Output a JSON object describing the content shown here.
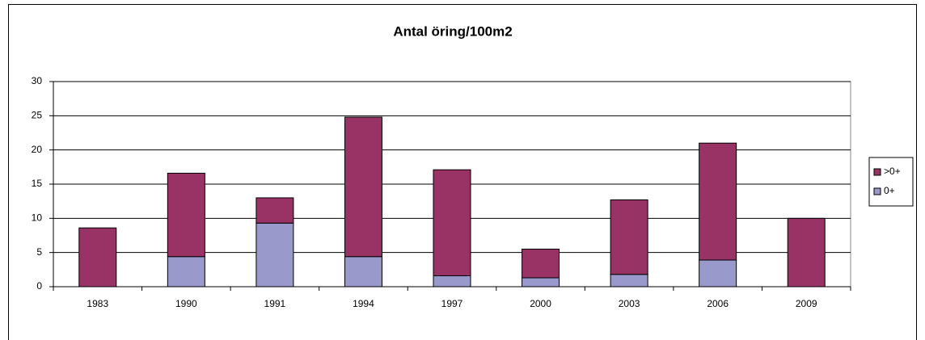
{
  "chart_data": {
    "type": "stacked_bar",
    "title": "Antal öring/100m2",
    "categories": [
      "1983",
      "1990",
      "1991",
      "1994",
      "1997",
      "2000",
      "2003",
      "2006",
      "2009"
    ],
    "series": [
      {
        "name": "0+",
        "color": "#9999cc",
        "values": [
          0,
          4.4,
          9.3,
          4.4,
          1.6,
          1.3,
          1.8,
          3.9,
          0
        ]
      },
      {
        "name": ">0+",
        "color": "#993366",
        "values": [
          8.6,
          12.2,
          3.7,
          20.4,
          15.5,
          4.2,
          10.9,
          17.1,
          10
        ]
      }
    ],
    "ylim": [
      0,
      30
    ],
    "yticks": [
      0,
      5,
      10,
      15,
      20,
      25,
      30
    ],
    "grid": true,
    "legend": "right"
  }
}
